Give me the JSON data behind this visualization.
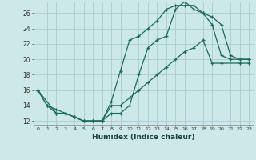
{
  "xlabel": "Humidex (Indice chaleur)",
  "background_color": "#cce8e8",
  "grid_color": "#aacccc",
  "line_color": "#1a6b5a",
  "xlim": [
    -0.5,
    23.5
  ],
  "ylim": [
    11.5,
    27.5
  ],
  "yticks": [
    12,
    14,
    16,
    18,
    20,
    22,
    24,
    26
  ],
  "xticks": [
    0,
    1,
    2,
    3,
    4,
    5,
    6,
    7,
    8,
    9,
    10,
    11,
    12,
    13,
    14,
    15,
    16,
    17,
    18,
    19,
    20,
    21,
    22,
    23
  ],
  "line1_x": [
    0,
    1,
    2,
    3,
    4,
    5,
    6,
    7,
    8,
    9,
    10,
    11,
    12,
    13,
    14,
    15,
    16,
    17,
    18,
    19,
    20,
    21,
    22,
    23
  ],
  "line1_y": [
    16,
    14,
    13,
    13,
    12.5,
    12,
    12,
    12,
    14.5,
    18.5,
    22.5,
    23,
    24,
    25,
    26.5,
    27,
    27,
    27,
    26,
    24.5,
    20.5,
    20,
    20,
    20
  ],
  "line2_x": [
    0,
    2,
    3,
    4,
    5,
    6,
    7,
    8,
    9,
    10,
    11,
    12,
    13,
    14,
    15,
    16,
    17,
    18,
    19,
    20,
    21,
    22,
    23
  ],
  "line2_y": [
    16,
    13,
    13,
    12.5,
    12,
    12,
    12,
    13,
    13,
    14,
    18,
    21.5,
    22.5,
    23,
    26.5,
    27.5,
    26.5,
    26,
    25.5,
    24.5,
    20.5,
    20,
    20
  ],
  "line3_x": [
    0,
    1,
    2,
    3,
    4,
    5,
    6,
    7,
    8,
    9,
    10,
    11,
    12,
    13,
    14,
    15,
    16,
    17,
    18,
    19,
    20,
    22,
    23
  ],
  "line3_y": [
    16,
    14,
    13.5,
    13,
    12.5,
    12,
    12,
    12,
    14,
    14,
    15,
    16,
    17,
    18,
    19,
    20,
    21,
    21.5,
    22.5,
    19.5,
    19.5,
    19.5,
    19.5
  ]
}
